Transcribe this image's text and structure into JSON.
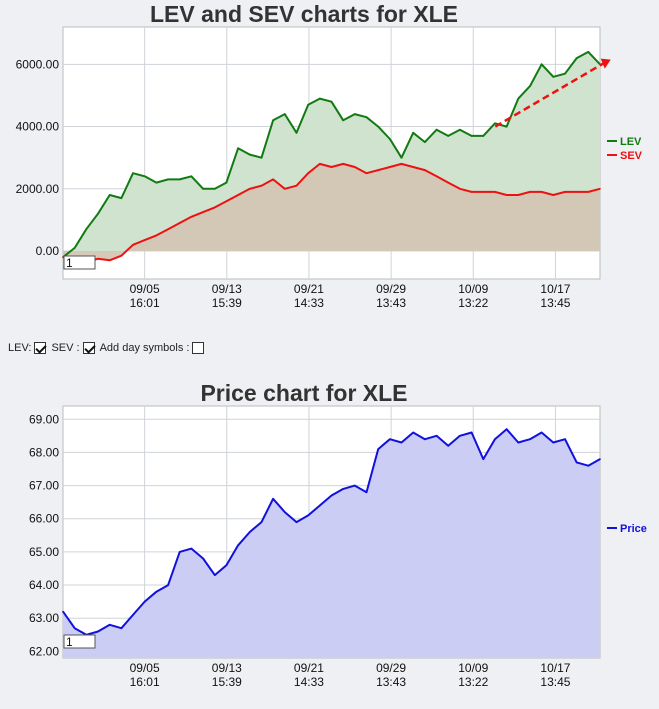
{
  "lev_chart": {
    "title": "LEV and SEV charts for XLE",
    "zoom_box": "1",
    "legend": [
      {
        "label": "LEV",
        "color": "#117a11"
      },
      {
        "label": "SEV",
        "color": "#ee1111"
      }
    ]
  },
  "price_chart": {
    "title": "Price chart for XLE",
    "zoom_box": "1",
    "legend": [
      {
        "label": "Price",
        "color": "#1111dd"
      }
    ]
  },
  "controls": {
    "lev_label": "LEV:",
    "sev_label": "SEV :",
    "day_symbols_label": "Add day symbols :",
    "lev_checked": true,
    "sev_checked": true,
    "day_symbols_checked": false
  },
  "chart_data": [
    {
      "type": "area",
      "title": "LEV and SEV charts for XLE",
      "xlabel": "",
      "ylabel": "",
      "ylim": [
        -900,
        7200
      ],
      "yticks": [
        "0.00",
        "2000.00",
        "4000.00",
        "6000.00"
      ],
      "x_ticks": [
        {
          "date": "09/05",
          "time": "16:01"
        },
        {
          "date": "09/13",
          "time": "15:39"
        },
        {
          "date": "09/21",
          "time": "14:33"
        },
        {
          "date": "09/29",
          "time": "13:43"
        },
        {
          "date": "10/09",
          "time": "13:22"
        },
        {
          "date": "10/17",
          "time": "13:45"
        }
      ],
      "grid": true,
      "legend_position": "right",
      "trend_arrow": {
        "color": "#ee1111",
        "start_value": 4000,
        "end_value": 6150
      },
      "series": [
        {
          "name": "LEV",
          "color": "#117a11",
          "fill": "#cfe3cf",
          "values": [
            -200,
            100,
            700,
            1200,
            1800,
            1700,
            2500,
            2400,
            2200,
            2300,
            2300,
            2400,
            2000,
            2000,
            2200,
            3300,
            3100,
            3000,
            4200,
            4400,
            3800,
            4700,
            4900,
            4800,
            4200,
            4400,
            4300,
            4000,
            3600,
            3000,
            3800,
            3500,
            3900,
            3700,
            3900,
            3700,
            3700,
            4100,
            4000,
            4900,
            5300,
            6000,
            5600,
            5700,
            6200,
            6400,
            6000
          ]
        },
        {
          "name": "SEV",
          "color": "#ee1111",
          "fill": "#d3c3b3",
          "values": [
            -200,
            -300,
            -350,
            -250,
            -300,
            -150,
            200,
            350,
            500,
            700,
            900,
            1100,
            1250,
            1400,
            1600,
            1800,
            2000,
            2100,
            2300,
            2000,
            2100,
            2500,
            2800,
            2700,
            2800,
            2700,
            2500,
            2600,
            2700,
            2800,
            2700,
            2600,
            2400,
            2200,
            2000,
            1900,
            1900,
            1900,
            1800,
            1800,
            1900,
            1900,
            1800,
            1900,
            1900,
            1900,
            2000
          ]
        }
      ]
    },
    {
      "type": "area",
      "title": "Price chart for XLE",
      "xlabel": "",
      "ylabel": "",
      "ylim": [
        61.8,
        69.4
      ],
      "yticks": [
        "62.00",
        "63.00",
        "64.00",
        "65.00",
        "66.00",
        "67.00",
        "68.00",
        "69.00"
      ],
      "x_ticks": [
        {
          "date": "09/05",
          "time": "16:01"
        },
        {
          "date": "09/13",
          "time": "15:39"
        },
        {
          "date": "09/21",
          "time": "14:33"
        },
        {
          "date": "09/29",
          "time": "13:43"
        },
        {
          "date": "10/09",
          "time": "13:22"
        },
        {
          "date": "10/17",
          "time": "13:45"
        }
      ],
      "grid": true,
      "legend_position": "right",
      "series": [
        {
          "name": "Price",
          "color": "#1111dd",
          "fill": "#cbcdf5",
          "values": [
            63.2,
            62.7,
            62.5,
            62.6,
            62.8,
            62.7,
            63.1,
            63.5,
            63.8,
            64.0,
            65.0,
            65.1,
            64.8,
            64.3,
            64.6,
            65.2,
            65.6,
            65.9,
            66.6,
            66.2,
            65.9,
            66.1,
            66.4,
            66.7,
            66.9,
            67.0,
            66.8,
            68.1,
            68.4,
            68.3,
            68.6,
            68.4,
            68.5,
            68.2,
            68.5,
            68.6,
            67.8,
            68.4,
            68.7,
            68.3,
            68.4,
            68.6,
            68.3,
            68.4,
            67.7,
            67.6,
            67.8
          ]
        }
      ]
    }
  ]
}
